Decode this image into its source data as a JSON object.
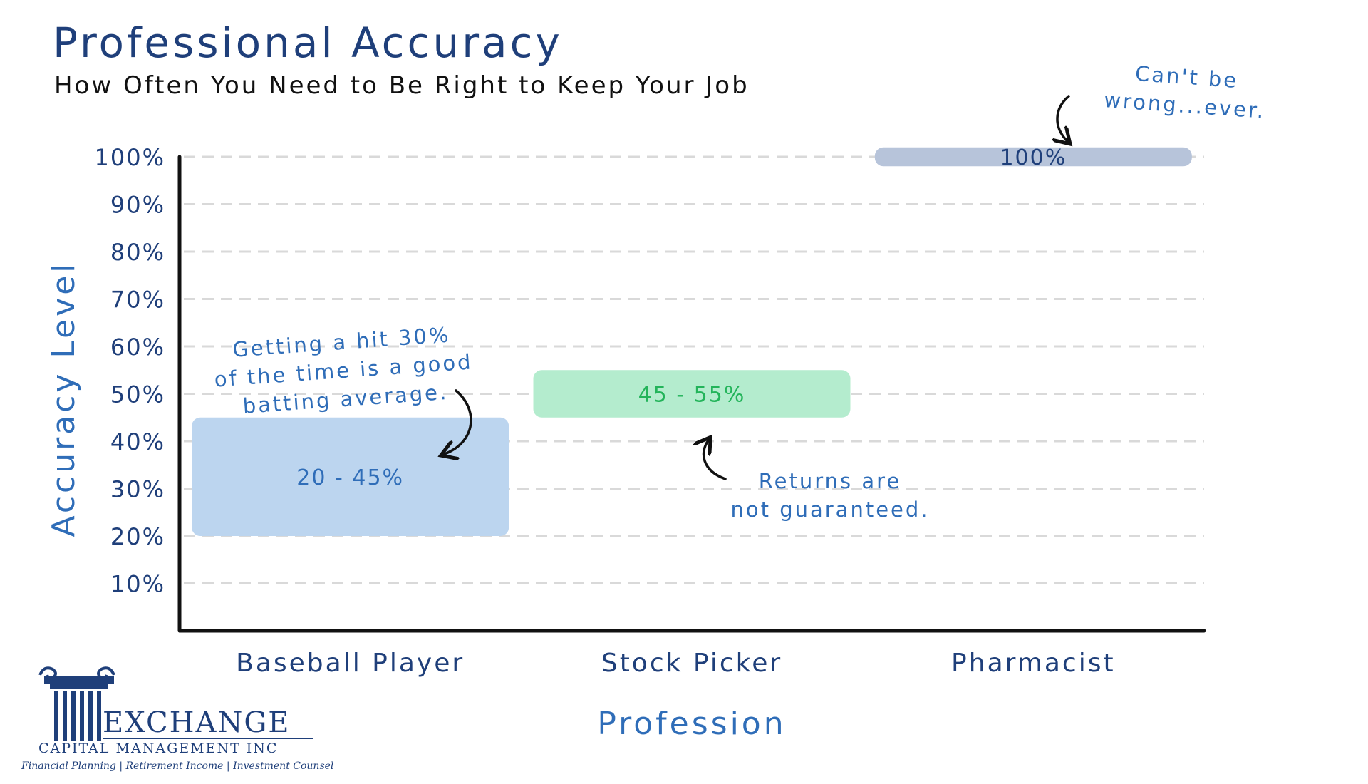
{
  "chart_data": {
    "type": "floating-bar",
    "title": "Professional Accuracy",
    "subtitle": "How Often You Need to Be Right to Keep Your Job",
    "xlabel": "Profession",
    "ylabel": "Accuracy Level",
    "ylim": [
      0,
      100
    ],
    "yticks": [
      10,
      20,
      30,
      40,
      50,
      60,
      70,
      80,
      90,
      100
    ],
    "ytick_labels": [
      "10%",
      "20%",
      "30%",
      "40%",
      "50%",
      "60%",
      "70%",
      "80%",
      "90%",
      "100%"
    ],
    "grid": true,
    "categories": [
      "Baseball Player",
      "Stock Picker",
      "Pharmacist"
    ],
    "ranges": [
      {
        "category": "Baseball Player",
        "low": 20,
        "high": 45,
        "label": "20 - 45%",
        "fill": "#bcd5ef",
        "text_color": "#2f6db8"
      },
      {
        "category": "Stock Picker",
        "low": 45,
        "high": 55,
        "label": "45 - 55%",
        "fill": "#b4ecce",
        "text_color": "#23b45a"
      },
      {
        "category": "Pharmacist",
        "low": 98,
        "high": 102,
        "label": "100%",
        "fill": "#b7c4da",
        "text_color": "#1f3f7a"
      }
    ],
    "annotations": [
      {
        "category": "Baseball Player",
        "lines": [
          "Getting a hit 30%",
          "of the time is a good",
          "batting average."
        ]
      },
      {
        "category": "Stock Picker",
        "lines": [
          "Returns are",
          "not guaranteed."
        ]
      },
      {
        "category": "Pharmacist",
        "lines": [
          "Can't be",
          "wrong...ever."
        ]
      }
    ]
  },
  "colors": {
    "title": "#1f3f7a",
    "axis_label": "#2f6db8",
    "tick_label": "#1f3f7a",
    "annotation": "#2f6db8",
    "grid": "#d9d9d9",
    "axis": "#111111"
  },
  "logo": {
    "name": "EXCHANGE",
    "subname": "CAPITAL MANAGEMENT INC",
    "tagline": "Financial Planning | Retirement Income | Investment Counsel"
  }
}
